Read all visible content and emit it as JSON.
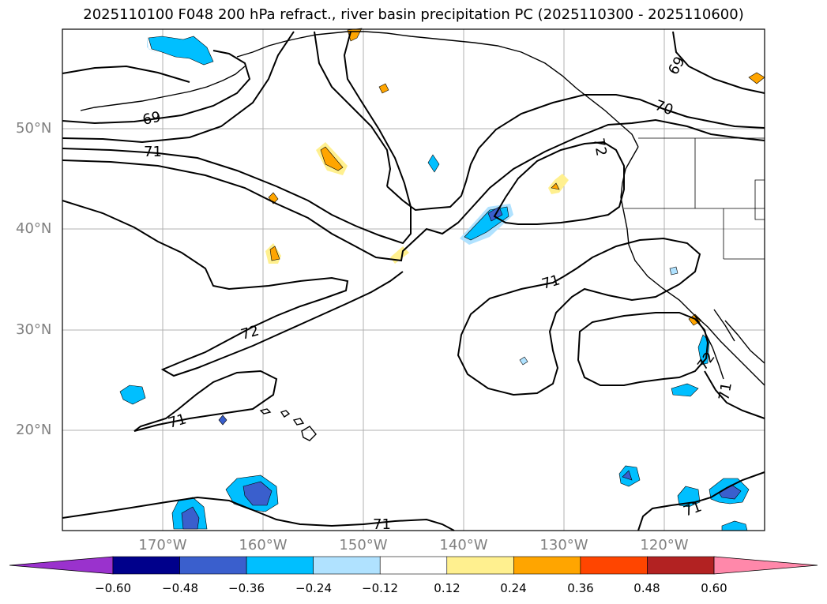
{
  "title": "2025110100 F048 200 hPa refract., river basin precipitation PC (2025110300 - 2025110600)",
  "lat_labels": [
    "50°N",
    "40°N",
    "30°N",
    "20°N"
  ],
  "lon_labels": [
    "170°W",
    "160°W",
    "150°W",
    "140°W",
    "130°W",
    "120°W"
  ],
  "contour_labels": [
    {
      "id": "label-69-west",
      "text": "69"
    },
    {
      "id": "label-69-east",
      "text": "69"
    },
    {
      "id": "label-70",
      "text": "70"
    },
    {
      "id": "label-71-north",
      "text": "71"
    },
    {
      "id": "label-71-central",
      "text": "71"
    },
    {
      "id": "label-71-southwest",
      "text": "71"
    },
    {
      "id": "label-71-bottom",
      "text": "71"
    },
    {
      "id": "label-71-southeast",
      "text": "71"
    },
    {
      "id": "label-71-coast",
      "text": "71"
    },
    {
      "id": "label-72-central",
      "text": "72"
    },
    {
      "id": "label-72-coast",
      "text": "72"
    },
    {
      "id": "label-72-baja",
      "text": "72"
    }
  ],
  "colorbar": {
    "colors": [
      "#9a32cd",
      "#00008b",
      "#3a5fcd",
      "#00bfff",
      "#b0e2ff",
      "#ffffff",
      "#fff08f",
      "#ffa500",
      "#ff4500",
      "#b22222",
      "#ff88aa"
    ],
    "tick_labels": [
      "−0.60",
      "−0.48",
      "−0.36",
      "−0.24",
      "−0.12",
      "0.12",
      "0.24",
      "0.36",
      "0.48",
      "0.60"
    ]
  }
}
